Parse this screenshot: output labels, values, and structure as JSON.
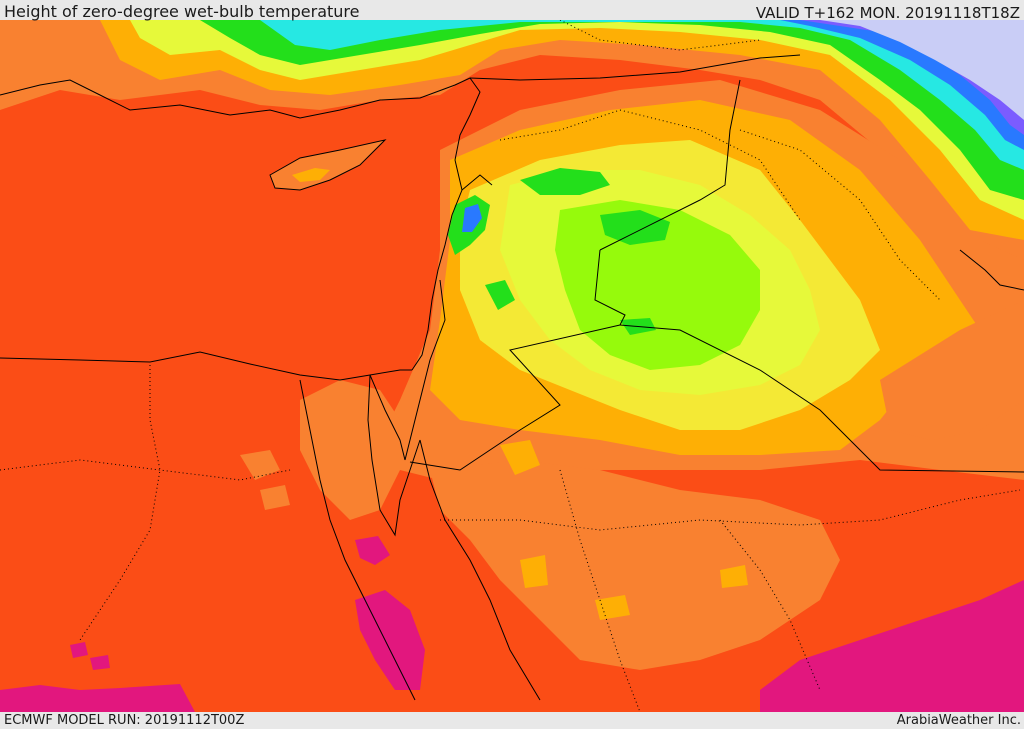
{
  "header": {
    "title": "Height of zero-degree wet-bulb temperature",
    "valid": "VALID T+162 MON. 20191118T18Z"
  },
  "footer": {
    "model_run": "ECMWF MODEL RUN: 20191112T00Z",
    "credit": "ArabiaWeather Inc."
  },
  "colors": {
    "red_orange": "#fb4d16",
    "orange": "#f98130",
    "amber": "#feaf05",
    "yellow": "#f4e935",
    "yellow_green": "#e6f93a",
    "lime": "#96fa0c",
    "green": "#23df1b",
    "dark_green": "#12b80f",
    "cyan": "#26e8e3",
    "blue": "#2979ff",
    "violet": "#7b5cff",
    "lavender": "#c9cdf6",
    "magenta": "#e2177e"
  }
}
